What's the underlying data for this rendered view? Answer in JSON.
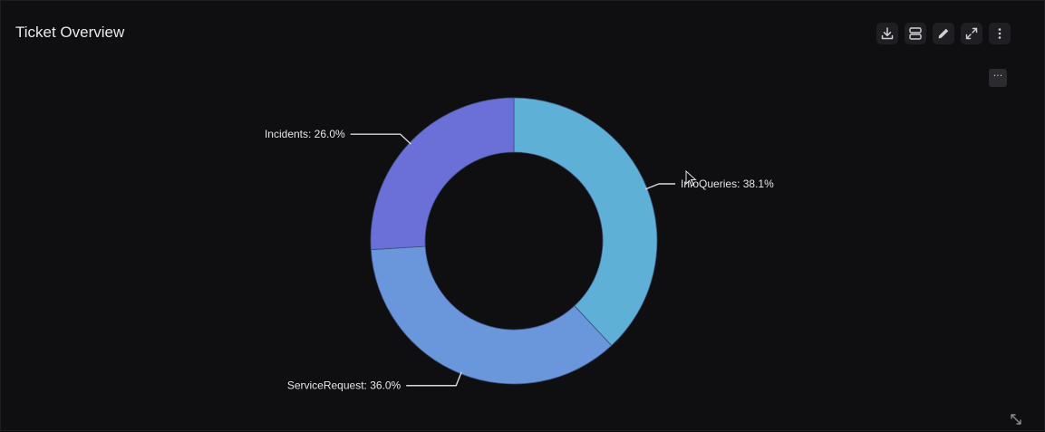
{
  "panel": {
    "title": "Ticket Overview",
    "more_label": "···"
  },
  "toolbar": [
    {
      "name": "download-button",
      "icon": "download-icon"
    },
    {
      "name": "layout-toggle-button",
      "icon": "layout-rows-icon"
    },
    {
      "name": "edit-button",
      "icon": "pencil-icon"
    },
    {
      "name": "fullscreen-button",
      "icon": "expand-icon"
    },
    {
      "name": "more-options-button",
      "icon": "kebab-menu-icon"
    }
  ],
  "chart_data": {
    "type": "pie",
    "variant": "donut",
    "title": "",
    "series": [
      {
        "name": "InfoQueries",
        "value": 38.1,
        "label": "InfoQueries: 38.1%",
        "color": "#5fb0d6"
      },
      {
        "name": "ServiceRequest",
        "value": 36.0,
        "label": "ServiceRequest: 36.0%",
        "color": "#6a96dc"
      },
      {
        "name": "Incidents",
        "value": 26.0,
        "label": "Incidents: 26.0%",
        "color": "#6b6fd8"
      }
    ]
  }
}
